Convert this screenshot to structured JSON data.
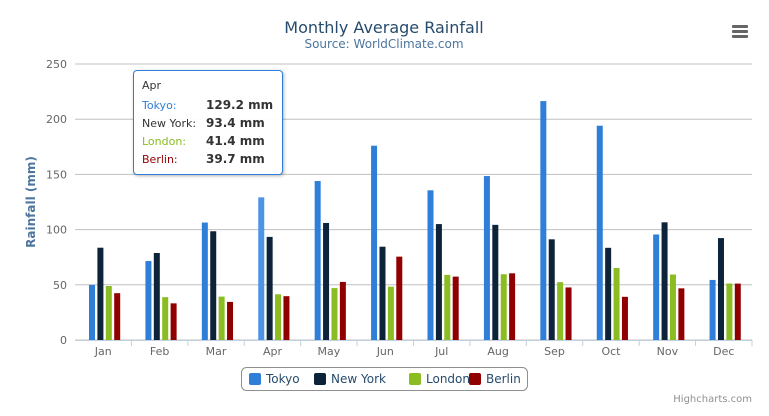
{
  "chart_data": {
    "type": "bar",
    "title": "Monthly Average Rainfall",
    "subtitle": "Source: WorldClimate.com",
    "xlabel": "",
    "ylabel": "Rainfall (mm)",
    "ylim": [
      0,
      250
    ],
    "yticks": [
      "0",
      "50",
      "100",
      "150",
      "200",
      "250"
    ],
    "grid": true,
    "legend_position": "bottom",
    "categories": [
      "Jan",
      "Feb",
      "Mar",
      "Apr",
      "May",
      "Jun",
      "Jul",
      "Aug",
      "Sep",
      "Oct",
      "Nov",
      "Dec"
    ],
    "series": [
      {
        "name": "Tokyo",
        "color": "#2f7ed8",
        "values": [
          49.9,
          71.5,
          106.4,
          129.2,
          144.0,
          176.0,
          135.6,
          148.5,
          216.4,
          194.1,
          95.6,
          54.4
        ]
      },
      {
        "name": "New York",
        "color": "#0d233a",
        "values": [
          83.6,
          78.8,
          98.5,
          93.4,
          106.0,
          84.5,
          105.0,
          104.3,
          91.2,
          83.5,
          106.6,
          92.3
        ]
      },
      {
        "name": "London",
        "color": "#8bbc21",
        "values": [
          48.9,
          38.8,
          39.3,
          41.4,
          47.0,
          48.3,
          59.0,
          59.6,
          52.4,
          65.2,
          59.3,
          51.2
        ]
      },
      {
        "name": "Berlin",
        "color": "#910000",
        "values": [
          42.4,
          33.2,
          34.5,
          39.7,
          52.6,
          75.5,
          57.4,
          60.4,
          47.6,
          39.1,
          46.8,
          51.1
        ]
      }
    ]
  },
  "tooltip": {
    "header": "Apr",
    "rows": [
      {
        "name": "Tokyo:",
        "value": "129.2 mm",
        "color": "#2f7ed8"
      },
      {
        "name": "New York:",
        "value": "93.4 mm",
        "color": "#333333"
      },
      {
        "name": "London:",
        "value": "41.4 mm",
        "color": "#8bbc21"
      },
      {
        "name": "Berlin:",
        "value": "39.7 mm",
        "color": "#910000"
      }
    ]
  },
  "credits": "Highcharts.com",
  "menu_icon": "hamburger-menu-icon"
}
